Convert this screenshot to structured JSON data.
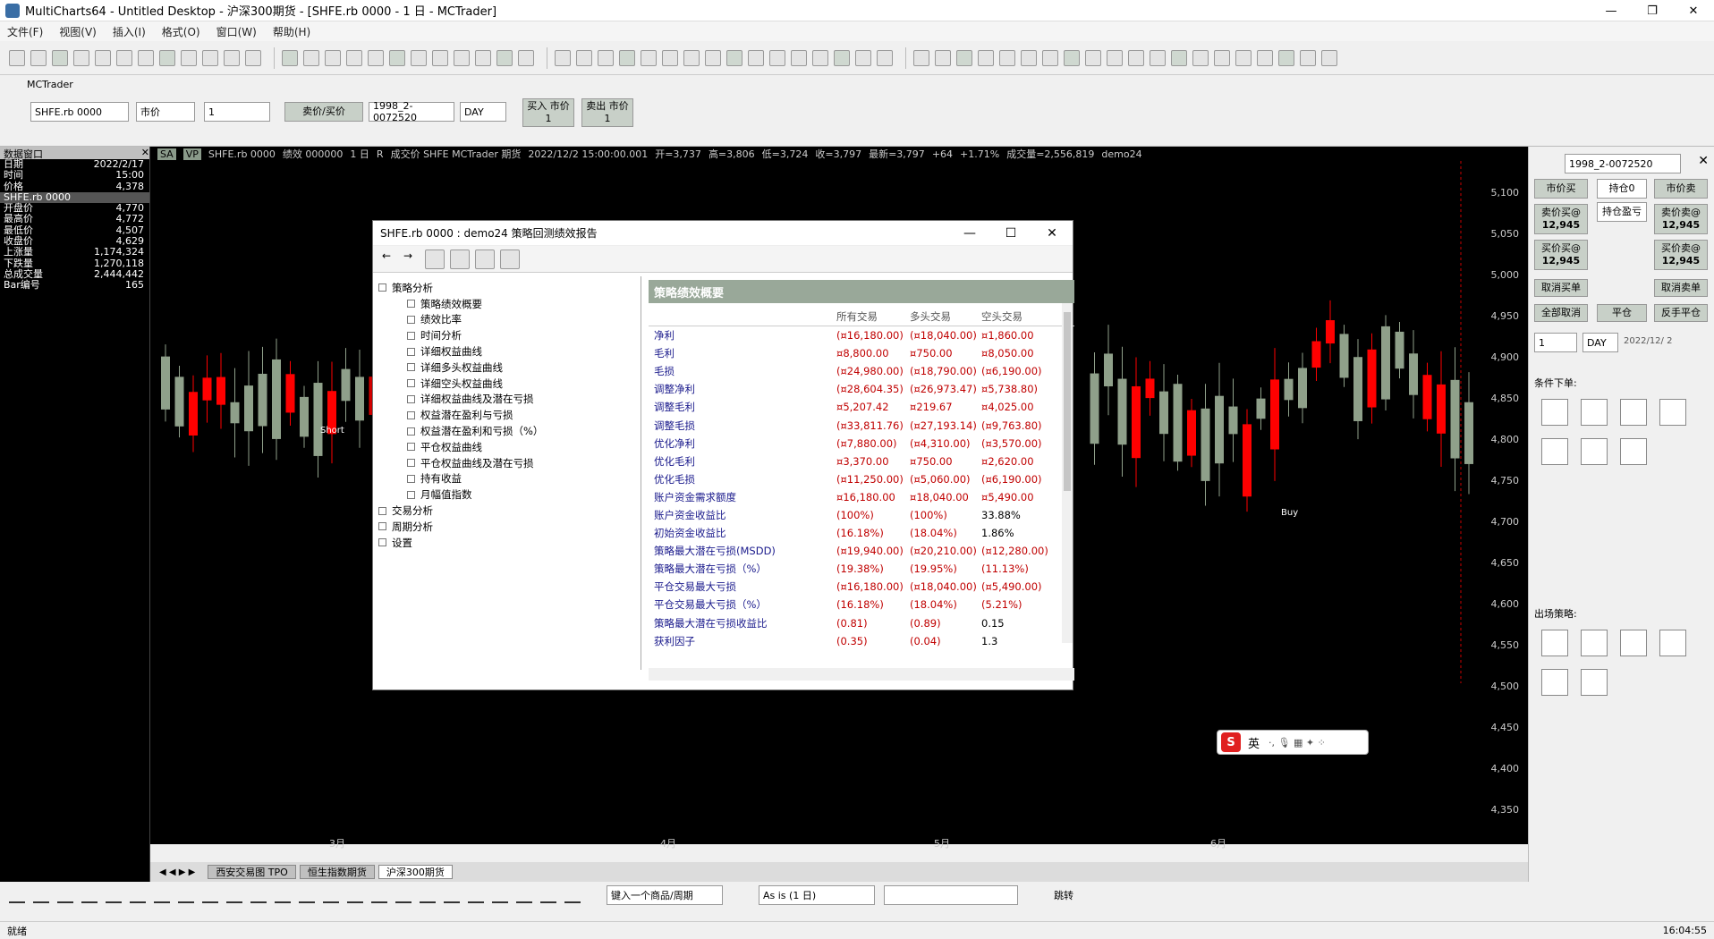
{
  "window": {
    "title": "MultiCharts64 - Untitled Desktop - 沪深300期货 - [SHFE.rb 0000 - 1 日 - MCTrader]",
    "min": "—",
    "max": "❐",
    "close": "✕"
  },
  "menu": [
    "文件(F)",
    "视图(V)",
    "插入(I)",
    "格式(O)",
    "窗口(W)",
    "帮助(H)"
  ],
  "trade_bar": {
    "broker": "MCTrader",
    "symbol": "SHFE.rb 0000",
    "order_type": "市价",
    "quantity": "1",
    "sell_buy": "卖价/买价",
    "account": "1998_2-0072520",
    "resolution": "DAY",
    "buy_label": "买入 市价",
    "buy_qty": "1",
    "sell_label": "卖出 市价",
    "sell_qty": "1"
  },
  "left_panel": {
    "title": "数据窗口",
    "header1": "SHFE.rb 0000",
    "rows": [
      {
        "k": "日期",
        "v": "2022/2/17"
      },
      {
        "k": "时间",
        "v": "15:00"
      },
      {
        "k": "价格",
        "v": "4,378"
      },
      {
        "k": "开盘价",
        "v": "4,770"
      },
      {
        "k": "最高价",
        "v": "4,772"
      },
      {
        "k": "最低价",
        "v": "4,507"
      },
      {
        "k": "收盘价",
        "v": "4,629"
      },
      {
        "k": "上涨量",
        "v": "1,174,324"
      },
      {
        "k": "下跌量",
        "v": "1,270,118"
      },
      {
        "k": "总成交量",
        "v": "2,444,442"
      },
      {
        "k": "Bar编号",
        "v": "165"
      }
    ]
  },
  "chart_header": {
    "sa": "SA",
    "vp": "VP",
    "symbol": "SHFE.rb 0000",
    "perf": "绩效 000000",
    "interval": "1 日",
    "r": "R",
    "desc": "成交价 SHFE MCTrader 期货",
    "datetime": "2022/12/2 15:00:00.001",
    "open": "开=3,737",
    "high": "高=3,806",
    "low": "低=3,724",
    "close": "收=3,797",
    "last": "最新=3,797",
    "change": "+64",
    "pct": "+1.71%",
    "volume": "成交量=2,556,819",
    "strategy": "demo24"
  },
  "price_axis": [
    "5,100",
    "5,050",
    "5,000",
    "4,950",
    "4,900",
    "4,850",
    "4,800",
    "4,750",
    "4,700",
    "4,650",
    "4,600",
    "4,550",
    "4,500",
    "4,450",
    "4,400",
    "4,350"
  ],
  "time_axis": [
    "3月",
    "4月",
    "5月",
    "6月"
  ],
  "markers": {
    "short": "Short",
    "buy": "Buy"
  },
  "tabs": [
    "西安交易图 TPO",
    "恒生指数期货",
    "沪深300期货"
  ],
  "drawbar": {
    "symbol_input": "键入一个商品/周期",
    "as_is": "As is (1 日)",
    "jump": "跳转"
  },
  "status": {
    "left": "就绪",
    "time": "16:04:55"
  },
  "right_panel": {
    "account": "1998_2-0072520",
    "market_price": "市价买",
    "position": "持仓0",
    "position_pl": "持仓盈亏",
    "market_sell": "市价卖",
    "sell_label": "卖价买@",
    "sell_price": "12,945",
    "buy_label": "买价买@",
    "buy_price": "12,945",
    "right_sell_label": "卖价卖@",
    "right_sell_price": "12,945",
    "right_buy_label": "买价卖@",
    "right_buy_price": "12,945",
    "cancel_buy": "取消买单",
    "cancel_sell": "取消卖单",
    "cancel_all": "全部取消",
    "flat": "平仓",
    "reverse": "反手平仓",
    "qty": "1",
    "res": "DAY",
    "date": "2022/12/ 2",
    "cond_orders": "条件下单:",
    "exit_strategies": "出场策略:"
  },
  "dialog": {
    "title": "SHFE.rb 0000 : demo24 策略回测绩效报告",
    "tree_root": "策略分析",
    "tree_items": [
      "策略绩效概要",
      "绩效比率",
      "时间分析",
      "详细权益曲线",
      "详细多头权益曲线",
      "详细空头权益曲线",
      "详细权益曲线及潜在亏损",
      "权益潜在盈利与亏损",
      "权益潜在盈利和亏损（%）",
      "平仓权益曲线",
      "平仓权益曲线及潜在亏损",
      "持有收益",
      "月幅值指数"
    ],
    "tree_more": [
      "交易分析",
      "周期分析",
      "设置"
    ],
    "report_title": "策略绩效概要",
    "columns": [
      "所有交易",
      "多头交易",
      "空头交易"
    ],
    "rows": [
      {
        "label": "净利",
        "all": "(¤16,180.00)",
        "long": "(¤18,040.00)",
        "short": "¤1,860.00"
      },
      {
        "label": "毛利",
        "all": "¤8,800.00",
        "long": "¤750.00",
        "short": "¤8,050.00"
      },
      {
        "label": "毛损",
        "all": "(¤24,980.00)",
        "long": "(¤18,790.00)",
        "short": "(¤6,190.00)"
      },
      {
        "label": "调整净利",
        "all": "(¤28,604.35)",
        "long": "(¤26,973.47)",
        "short": "¤5,738.80)"
      },
      {
        "label": "调整毛利",
        "all": "¤5,207.42",
        "long": "¤219.67",
        "short": "¤4,025.00"
      },
      {
        "label": "调整毛损",
        "all": "(¤33,811.76)",
        "long": "(¤27,193.14)",
        "short": "(¤9,763.80)"
      },
      {
        "label": "优化净利",
        "all": "(¤7,880.00)",
        "long": "(¤4,310.00)",
        "short": "(¤3,570.00)"
      },
      {
        "label": "优化毛利",
        "all": "¤3,370.00",
        "long": "¤750.00",
        "short": "¤2,620.00"
      },
      {
        "label": "优化毛损",
        "all": "(¤11,250.00)",
        "long": "(¤5,060.00)",
        "short": "(¤6,190.00)"
      },
      {
        "label": "账户资金需求额度",
        "all": "¤16,180.00",
        "long": "¤18,040.00",
        "short": "¤5,490.00"
      },
      {
        "label": "账户资金收益比",
        "all": "(100%)",
        "long": "(100%)",
        "short": "33.88%"
      },
      {
        "label": "初始资金收益比",
        "all": "(16.18%)",
        "long": "(18.04%)",
        "short": "1.86%"
      },
      {
        "label": "策略最大潜在亏损(MSDD)",
        "all": "(¤19,940.00)",
        "long": "(¤20,210.00)",
        "short": "(¤12,280.00)"
      },
      {
        "label": "策略最大潜在亏损（%）",
        "all": "(19.38%)",
        "long": "(19.95%)",
        "short": "(11.13%)"
      },
      {
        "label": "平仓交易最大亏损",
        "all": "(¤16,180.00)",
        "long": "(¤18,040.00)",
        "short": "(¤5,490.00)"
      },
      {
        "label": "平仓交易最大亏损（%）",
        "all": "(16.18%)",
        "long": "(18.04%)",
        "short": "(5.21%)"
      },
      {
        "label": "策略最大潜在亏损收益比",
        "all": "(0.81)",
        "long": "(0.89)",
        "short": "0.15"
      },
      {
        "label": "获利因子",
        "all": "(0.35)",
        "long": "(0.04)",
        "short": "1.3"
      }
    ]
  },
  "ime": {
    "s": "S",
    "lang": "英"
  },
  "colors": {
    "up": "#ff0000",
    "down": "#8fa08a",
    "bg": "#000000"
  }
}
